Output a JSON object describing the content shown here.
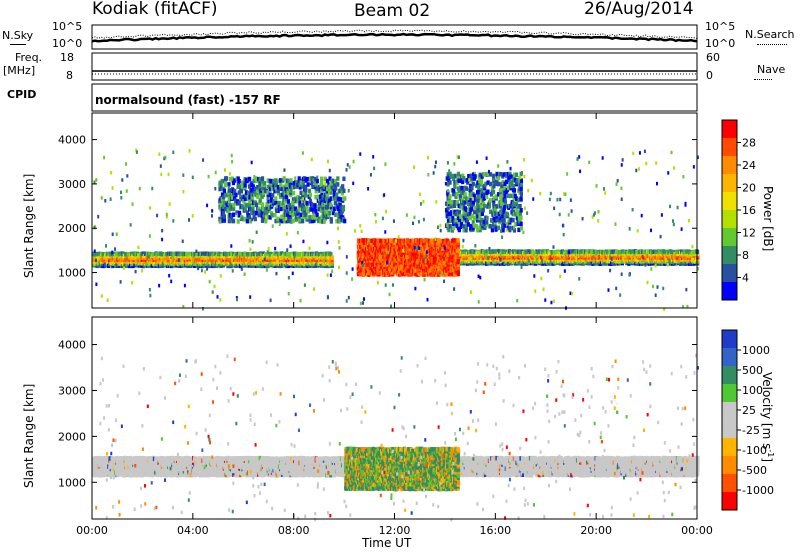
{
  "header": {
    "station": "Kodiak (fitACF)",
    "beam": "Beam 02",
    "date": "26/Aug/2014"
  },
  "sky_panel": {
    "left_label": "N.Sky",
    "right_label": "N.Search",
    "left_ticks": [
      "10^5",
      "10^0"
    ],
    "right_ticks": [
      "10^5",
      "10^0"
    ]
  },
  "freq_panel": {
    "left_label_line1": "Freq.",
    "left_label_line2": "[MHz]",
    "right_label": "Nave",
    "left_ticks": [
      "18",
      "8"
    ],
    "right_ticks": [
      "60",
      "0"
    ]
  },
  "cpid": {
    "label": "CPID",
    "text": "normalsound (fast) -157 RF"
  },
  "chart_data": [
    {
      "type": "heatmap",
      "name": "power",
      "ylabel": "Slant Range [km]",
      "ylim": [
        200,
        4600
      ],
      "y_ticks": [
        "4000",
        "3000",
        "2000",
        "1000"
      ],
      "xlim": [
        0,
        24
      ],
      "colorbar_label": "Power [dB]",
      "colorbar_ticks": [
        "28",
        "24",
        "20",
        "16",
        "12",
        "8",
        "4"
      ],
      "colorbar_colors": [
        "#ff0000",
        "#ff4a00",
        "#ff8c00",
        "#ffb400",
        "#f0e000",
        "#b4e000",
        "#64c832",
        "#328c64",
        "#2850a0",
        "#0000ff"
      ],
      "bands": [
        {
          "x0": 0,
          "x1": 9.5,
          "y0": 1200,
          "y1": 1500,
          "level": "high"
        },
        {
          "x0": 14.5,
          "x1": 24,
          "y0": 1250,
          "y1": 1550,
          "level": "high"
        },
        {
          "x0": 10.5,
          "x1": 14.5,
          "y0": 1000,
          "y1": 1800,
          "level": "max"
        },
        {
          "x0": 5,
          "x1": 10,
          "y0": 2200,
          "y1": 3200,
          "level": "low"
        },
        {
          "x0": 14,
          "x1": 17,
          "y0": 2000,
          "y1": 3300,
          "level": "low"
        }
      ]
    },
    {
      "type": "heatmap",
      "name": "velocity",
      "ylabel": "Slant Range [km]",
      "ylim": [
        200,
        4600
      ],
      "y_ticks": [
        "4000",
        "3000",
        "2000",
        "1000"
      ],
      "xlim": [
        0,
        24
      ],
      "xlabel": "Time UT",
      "x_ticks": [
        "00:00",
        "04:00",
        "08:00",
        "12:00",
        "16:00",
        "20:00",
        "00:00"
      ],
      "colorbar_label": "Velocity [m s-1]",
      "colorbar_label_base": "Velocity [m s",
      "colorbar_label_sup": "-1",
      "colorbar_label_end": "]",
      "colorbar_ticks": [
        "1000",
        "500",
        "100",
        "25",
        "-25",
        "-100",
        "-500",
        "-1000"
      ],
      "colorbar_colors": [
        "#1e3cc8",
        "#3264c8",
        "#328c64",
        "#50c832",
        "#c8c8c8",
        "#c8c8c8",
        "#ffb400",
        "#ff8c00",
        "#ff5000",
        "#ff0000"
      ],
      "bands": [
        {
          "x0": 0,
          "x1": 24,
          "y0": 1200,
          "y1": 1600,
          "level": "ground"
        },
        {
          "x0": 10,
          "x1": 14.5,
          "y0": 900,
          "y1": 1800,
          "level": "flow"
        }
      ]
    }
  ]
}
